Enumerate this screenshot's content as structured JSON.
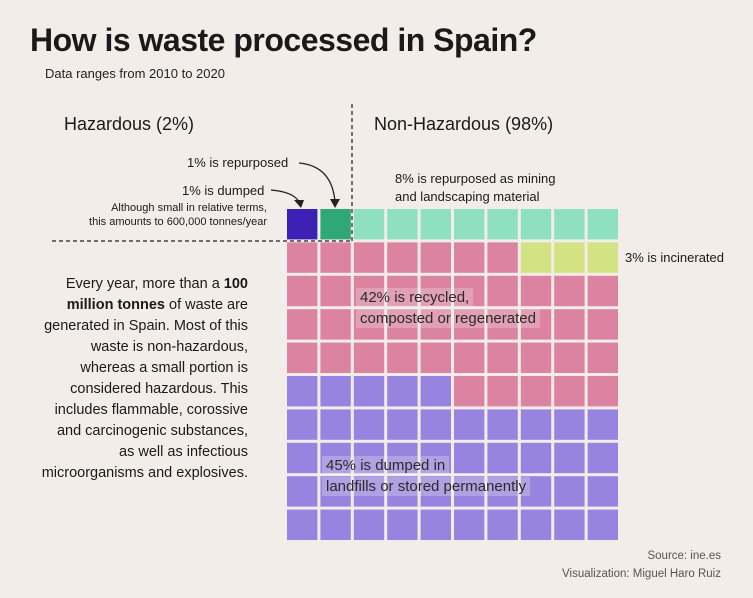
{
  "title": "How is waste processed in Spain?",
  "subtitle": "Data ranges from 2010 to 2020",
  "hazardous_heading": "Hazardous (2%)",
  "non_hazardous_heading": "Non-Hazardous (98%)",
  "annotations": {
    "repurposed_hazardous": "1% is repurposed",
    "dumped_hazardous": "1% is dumped",
    "dumped_note_1": "Although small in relative terms,",
    "dumped_note_2": "this amounts to 600,000 tonnes/year",
    "mining_1": "8% is repurposed as mining",
    "mining_2": "and landscaping material",
    "incinerated": "3% is incinerated",
    "recycled_1": "42% is recycled,",
    "recycled_2": "composted or regenerated",
    "landfill_1": "45% is dumped in",
    "landfill_2": "landfills or stored permanently"
  },
  "body": {
    "p1": "Every year, more than a ",
    "bold": "100 million tonnes",
    "p2": " of waste are generated in Spain. Most of this waste is non-hazardous, whereas a small portion is considered hazardous. This includes flammable, corossive and carcinogenic substances, as well as infectious microorganisms and explosives."
  },
  "credits": {
    "source": "Source: ine.es",
    "viz": "Visualization: Miguel Haro Ruiz"
  },
  "chart_data": {
    "type": "waffle",
    "grid": {
      "rows": 10,
      "cols": 10
    },
    "series": [
      {
        "name": "Hazardous dumped",
        "value": 1,
        "color": "#3c1fb5"
      },
      {
        "name": "Hazardous repurposed",
        "value": 1,
        "color": "#2fa876"
      },
      {
        "name": "Non-hazardous repurposed as mining and landscaping material",
        "value": 8,
        "color": "#8fe0c2"
      },
      {
        "name": "Non-hazardous incinerated",
        "value": 3,
        "color": "#d3e283"
      },
      {
        "name": "Non-hazardous recycled, composted or regenerated",
        "value": 42,
        "color": "#dc83a2"
      },
      {
        "name": "Non-hazardous dumped in landfills or stored permanently",
        "value": 45,
        "color": "#9684e0"
      }
    ]
  }
}
